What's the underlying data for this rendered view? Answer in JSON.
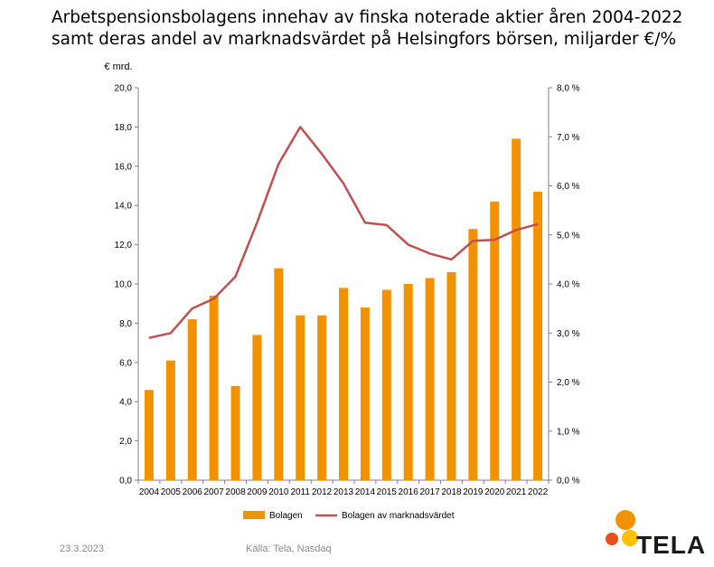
{
  "title": {
    "line1": "Arbetspensionsbolagens innehav av finska noterade aktier åren 2004-2022",
    "line2": "samt deras andel av marknadsvärdet på Helsingfors börsen, miljarder €/%"
  },
  "footer": {
    "date": "23.3.2023",
    "source": "Källa: Tela, Nasdaq"
  },
  "logo": {
    "text": "TELA",
    "colors": [
      "#f39200",
      "#ffc000",
      "#e94e1b"
    ]
  },
  "chart_data": {
    "type": "bar",
    "categories": [
      "2004",
      "2005",
      "2006",
      "2007",
      "2008",
      "2009",
      "2010",
      "2011",
      "2012",
      "2013",
      "2014",
      "2015",
      "2016",
      "2017",
      "2018",
      "2019",
      "2020",
      "2021",
      "2022"
    ],
    "y_unit_label": "€ mrd.",
    "ylim": [
      0,
      20
    ],
    "y_ticks": [
      "0,0",
      "2,0",
      "4,0",
      "6,0",
      "8,0",
      "10,0",
      "12,0",
      "14,0",
      "16,0",
      "18,0",
      "20,0"
    ],
    "y2lim": [
      0,
      8
    ],
    "y2_ticks": [
      "0,0 %",
      "1,0 %",
      "2,0 %",
      "3,0 %",
      "4,0 %",
      "5,0 %",
      "6,0 %",
      "7,0 %",
      "8,0 %"
    ],
    "series": [
      {
        "name": "Bolagen",
        "type": "bar",
        "axis": "left",
        "color": "#f39200",
        "values": [
          4.6,
          6.1,
          8.2,
          9.4,
          4.8,
          7.4,
          10.8,
          8.4,
          8.4,
          9.8,
          8.8,
          9.7,
          10.0,
          10.3,
          10.6,
          12.8,
          14.2,
          17.4,
          14.7
        ]
      },
      {
        "name": "Bolagen av marknadsvärdet",
        "type": "line",
        "axis": "right",
        "color": "#c0504d",
        "values": [
          2.9,
          3.0,
          3.5,
          3.7,
          4.15,
          5.25,
          6.45,
          7.2,
          6.65,
          6.05,
          5.25,
          5.2,
          4.8,
          4.62,
          4.5,
          4.88,
          4.9,
          5.1,
          5.22
        ]
      }
    ],
    "legend": "bottom",
    "grid": false
  }
}
